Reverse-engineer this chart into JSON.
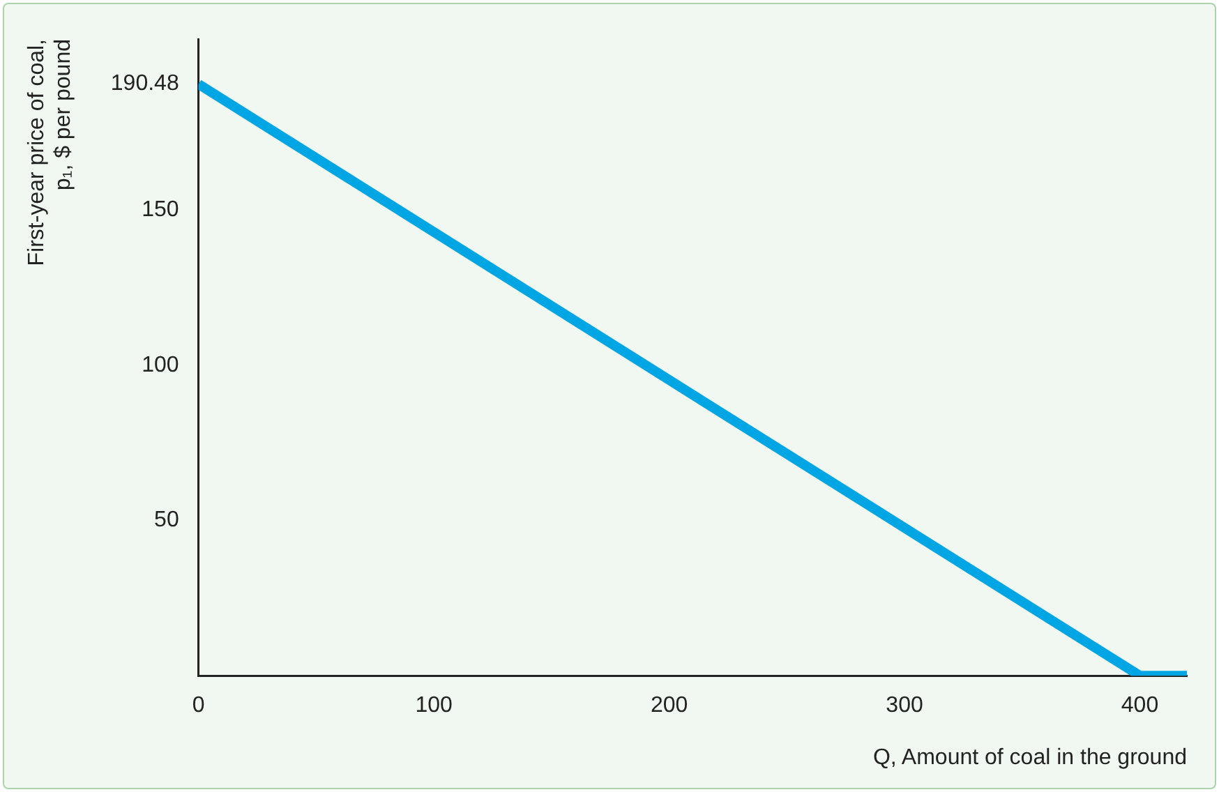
{
  "chart_data": {
    "type": "line",
    "xlabel": "Q, Amount of coal in the ground",
    "ylabel": "First-year price of coal,\np₁, $ per pound",
    "x": [
      0,
      400,
      420
    ],
    "series": [
      {
        "color": "#00a5e3",
        "values": [
          190.48,
          0,
          0
        ]
      }
    ],
    "xlim": [
      0,
      420
    ],
    "xticks": [
      0,
      100,
      200,
      300,
      400
    ],
    "ylim": [
      0,
      205
    ],
    "yticks": [
      50,
      100,
      150,
      190.48
    ],
    "grid": false,
    "legend": false,
    "marker": "none",
    "line_style": "solid"
  }
}
